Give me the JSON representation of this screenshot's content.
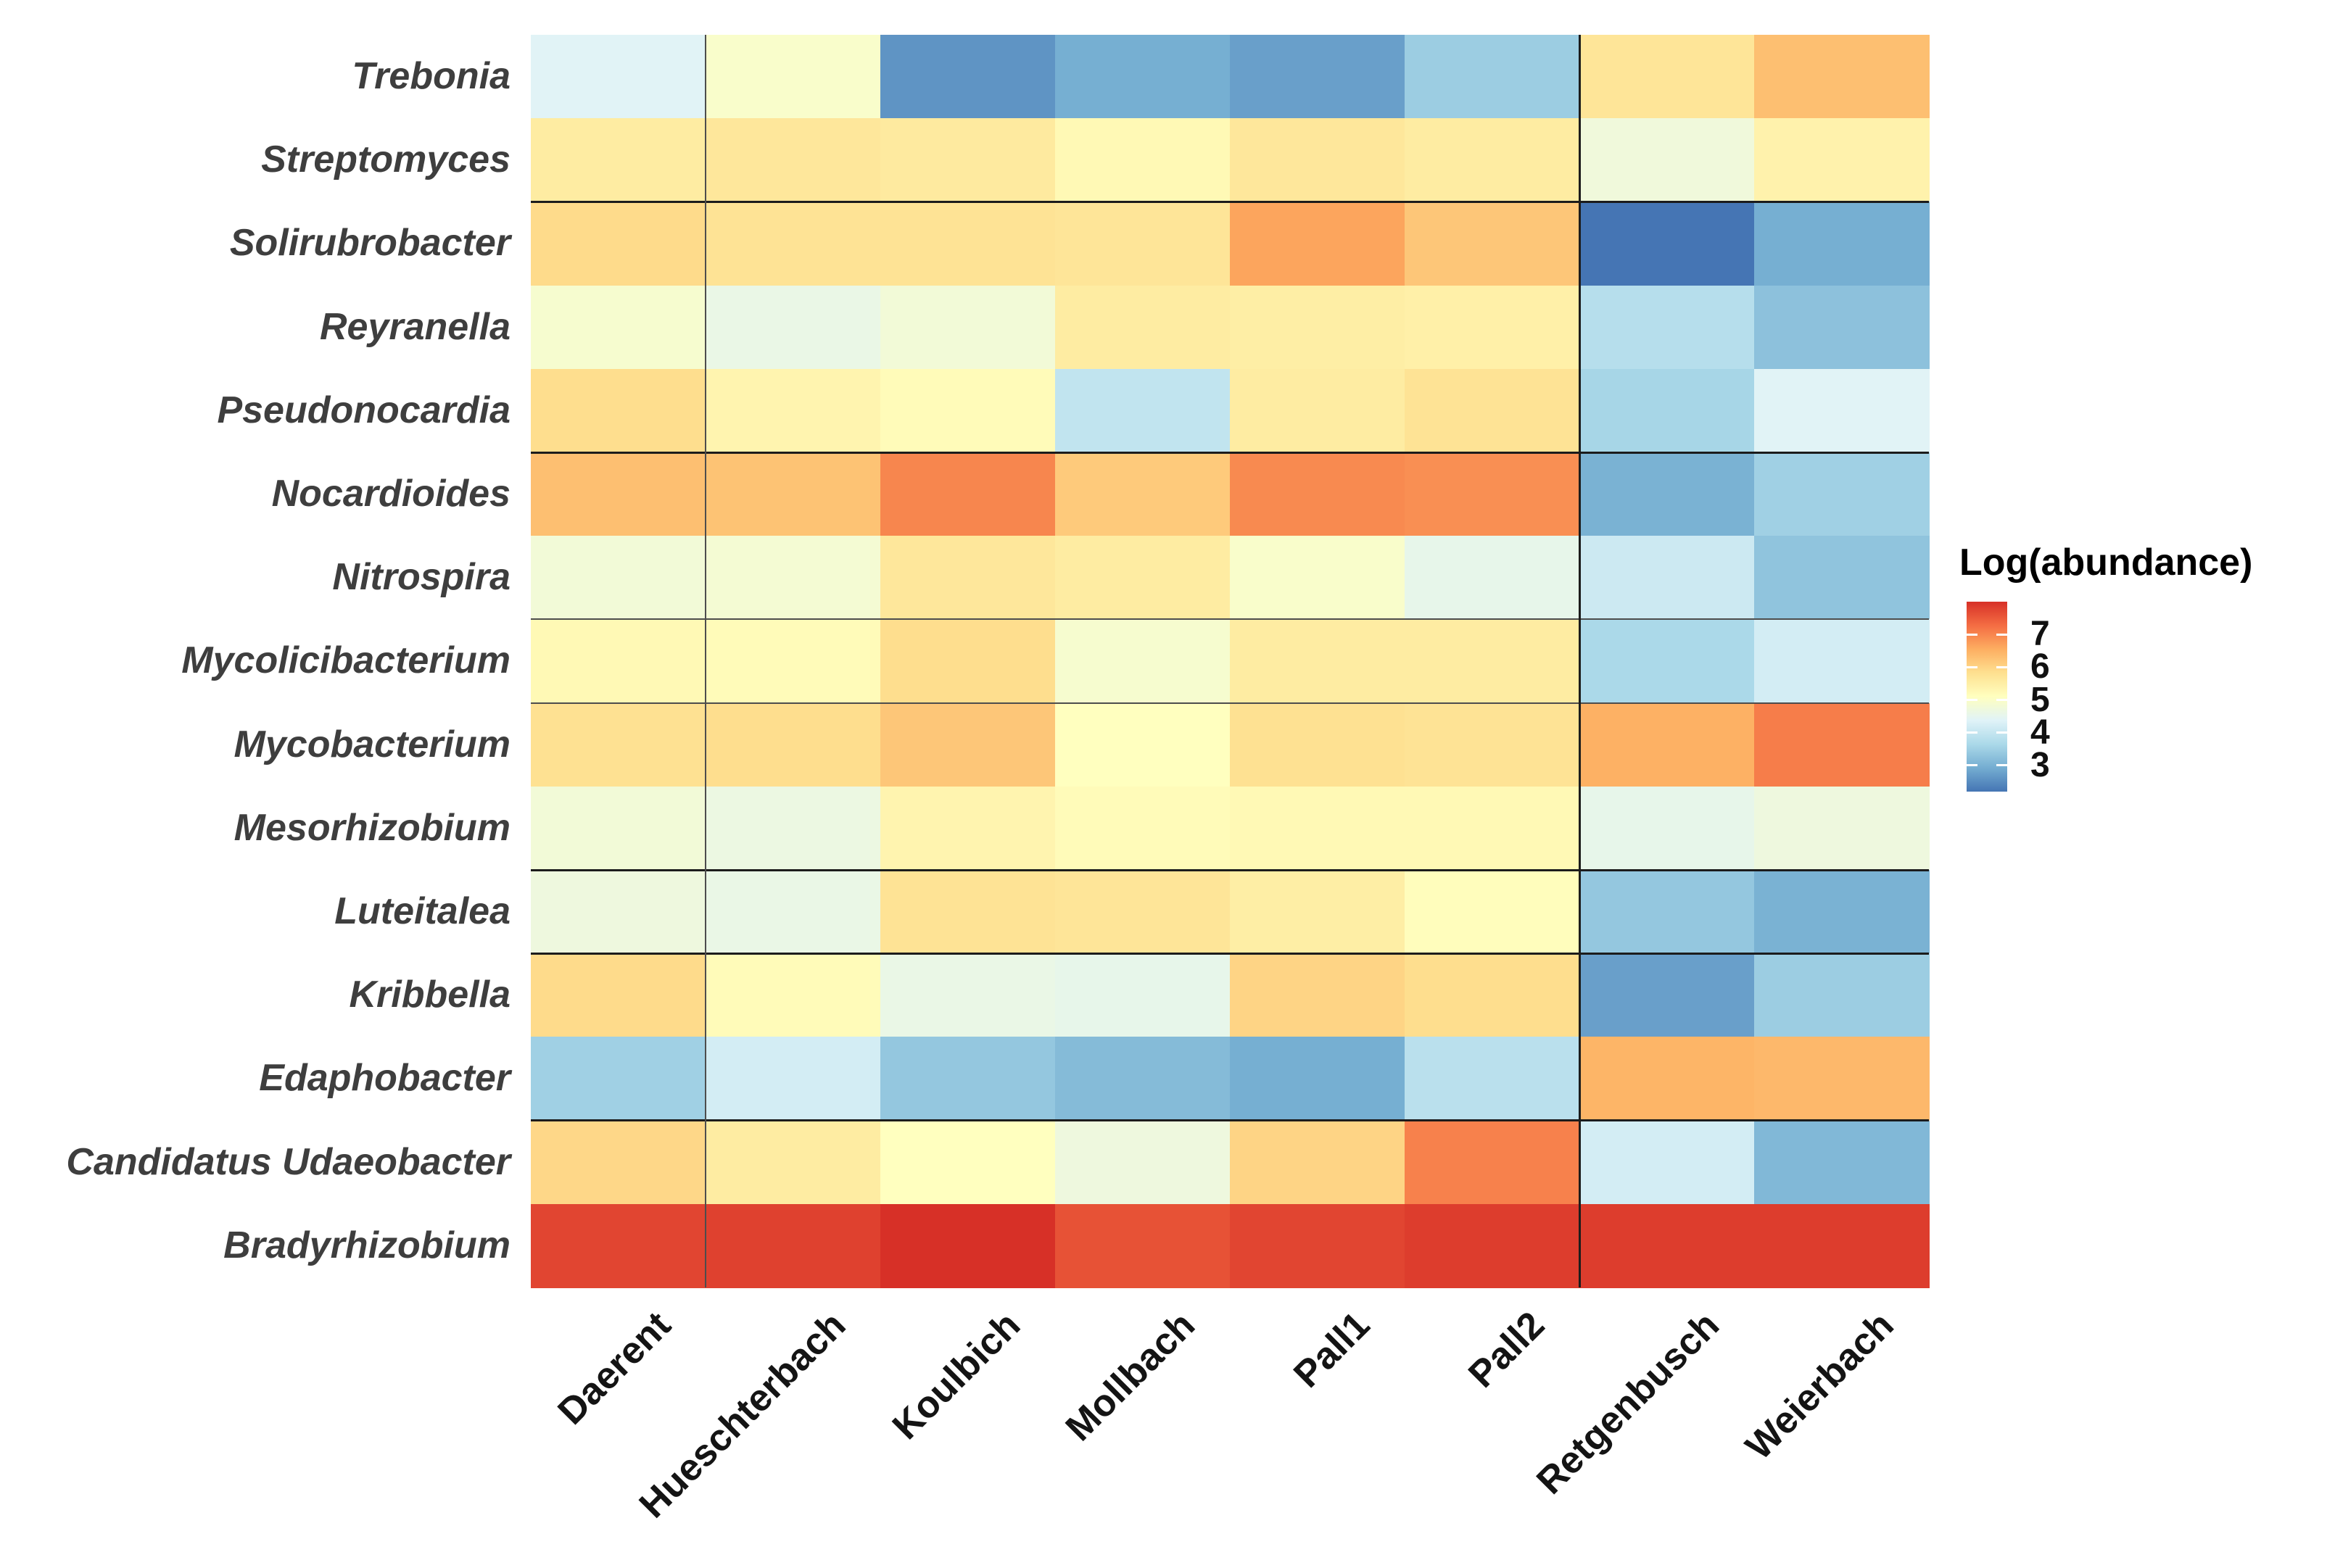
{
  "chart_data": {
    "type": "heatmap",
    "title": "",
    "legend": {
      "title": "Log(abundance)",
      "ticks": [
        7,
        6,
        5,
        4,
        3
      ],
      "position": "right"
    },
    "colormap": {
      "name": "RdYlBu-reversed",
      "domain": [
        2.2,
        8.0
      ],
      "stops": [
        [
          0.0,
          "#4575b4"
        ],
        [
          0.125,
          "#74add1"
        ],
        [
          0.25,
          "#abd9e9"
        ],
        [
          0.375,
          "#e0f3f8"
        ],
        [
          0.5,
          "#ffffbf"
        ],
        [
          0.625,
          "#fee090"
        ],
        [
          0.75,
          "#fdae61"
        ],
        [
          0.875,
          "#f46d43"
        ],
        [
          1.0,
          "#d73027"
        ]
      ]
    },
    "columns": [
      "Daerent",
      "Hueschterbach",
      "Koulbich",
      "Mollbach",
      "Pall1",
      "Pall2",
      "Retgenbusch",
      "Weierbach"
    ],
    "rows": [
      "Trebonia",
      "Streptomyces",
      "Solirubrobacter",
      "Reyranella",
      "Pseudonocardia",
      "Nocardioides",
      "Nitrospira",
      "Mycolicibacterium",
      "Mycobacterium",
      "Mesorhizobium",
      "Luteitalea",
      "Kribbella",
      "Edaphobacter",
      "Candidatus Udaeobacter",
      "Bradyrhizobium"
    ],
    "xlabel": "",
    "ylabel": "",
    "grid": false,
    "values": [
      [
        4.4,
        4.95,
        2.6,
        2.95,
        2.75,
        3.45,
        5.7,
        6.3
      ],
      [
        5.55,
        5.65,
        5.6,
        5.25,
        5.65,
        5.55,
        4.75,
        5.4
      ],
      [
        5.9,
        5.75,
        5.75,
        5.7,
        6.65,
        6.2,
        2.2,
        2.95
      ],
      [
        4.9,
        4.6,
        4.8,
        5.55,
        5.5,
        5.45,
        3.8,
        3.25
      ],
      [
        5.85,
        5.35,
        5.2,
        3.95,
        5.55,
        5.75,
        3.6,
        4.4
      ],
      [
        6.3,
        6.25,
        7.0,
        6.15,
        6.95,
        6.9,
        3.0,
        3.5
      ],
      [
        4.8,
        4.85,
        5.65,
        5.55,
        4.95,
        4.55,
        4.1,
        3.3
      ],
      [
        5.25,
        5.2,
        5.85,
        4.9,
        5.55,
        5.55,
        3.65,
        4.2
      ],
      [
        5.8,
        5.85,
        6.2,
        5.1,
        5.8,
        5.75,
        6.5,
        7.1
      ],
      [
        4.8,
        4.65,
        5.35,
        5.2,
        5.25,
        5.25,
        4.55,
        4.7
      ],
      [
        4.7,
        4.6,
        5.75,
        5.7,
        5.5,
        5.15,
        3.35,
        3.0
      ],
      [
        5.9,
        5.2,
        4.6,
        4.55,
        6.0,
        5.85,
        2.75,
        3.45
      ],
      [
        3.5,
        4.2,
        3.35,
        3.15,
        2.95,
        3.85,
        6.45,
        6.4
      ],
      [
        5.95,
        5.55,
        5.1,
        4.7,
        6.0,
        7.05,
        4.2,
        3.1
      ],
      [
        7.75,
        7.8,
        8.0,
        7.6,
        7.75,
        7.85,
        7.85,
        7.85
      ]
    ],
    "separators": {
      "after_rows_thick": [
        2,
        5,
        10,
        11,
        13
      ],
      "after_rows_thin": [
        7,
        8
      ],
      "after_cols_thick": [
        6
      ],
      "after_cols_thin": [
        1
      ],
      "thick_color": "#1c1c1c",
      "thin_color": "#4d4d4d"
    }
  }
}
